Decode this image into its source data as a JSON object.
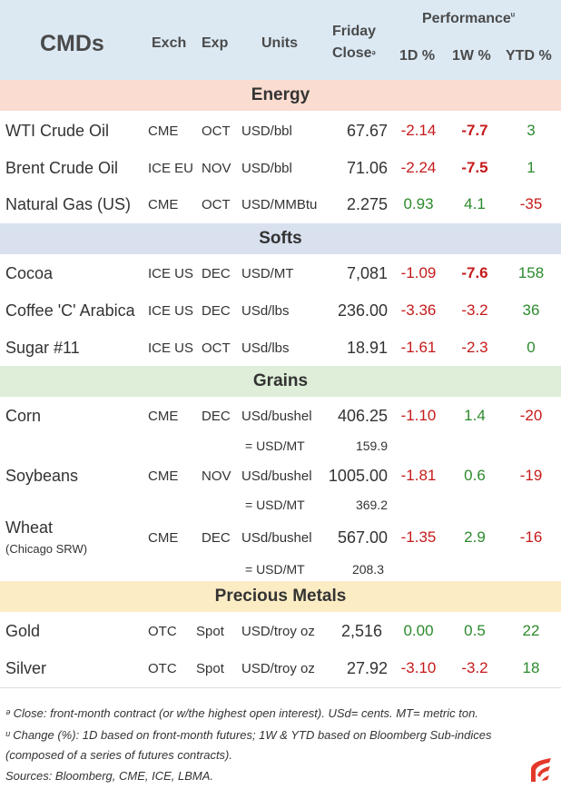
{
  "header": {
    "title": "CMDs",
    "exch": "Exch",
    "exp": "Exp",
    "units": "Units",
    "friday": "Friday",
    "close": "Close",
    "close_mark": "ᵊ",
    "performance": "Performance",
    "perf_mark": "ᵘ",
    "d1": "1D %",
    "w1": "1W %",
    "ytd": "YTD %"
  },
  "sections": {
    "energy": "Energy",
    "softs": "Softs",
    "grains": "Grains",
    "metals": "Precious Metals"
  },
  "colors": {
    "energy": "#fbdcd0",
    "softs": "#d9e1ef",
    "grains": "#deeed9",
    "metals": "#fcecc4",
    "negative": "#c61a1a",
    "positive": "#2c8a2c"
  },
  "rows": {
    "wti": {
      "name": "WTI Crude Oil",
      "exch": "CME",
      "exp": "OCT",
      "units": "USD/bbl",
      "close": "67.67",
      "d1": "-2.14",
      "w1": "-7.7",
      "ytd": "3"
    },
    "brent": {
      "name": "Brent Crude Oil",
      "exch": "ICE EU",
      "exp": "NOV",
      "units": "USD/bbl",
      "close": "71.06",
      "d1": "-2.24",
      "w1": "-7.5",
      "ytd": "1"
    },
    "natgas": {
      "name": "Natural Gas (US)",
      "exch": "CME",
      "exp": "OCT",
      "units": "USD/MMBtu",
      "close": "2.275",
      "d1": "0.93",
      "w1": "4.1",
      "ytd": "-35"
    },
    "cocoa": {
      "name": "Cocoa",
      "exch": "ICE US",
      "exp": "DEC",
      "units": "USD/MT",
      "close": "7,081",
      "d1": "-1.09",
      "w1": "-7.6",
      "ytd": "158"
    },
    "coffee": {
      "name": "Coffee 'C' Arabica",
      "exch": "ICE US",
      "exp": "DEC",
      "units": "USd/lbs",
      "close": "236.00",
      "d1": "-3.36",
      "w1": "-3.2",
      "ytd": "36"
    },
    "sugar": {
      "name": "Sugar #11",
      "exch": "ICE US",
      "exp": "OCT",
      "units": "USd/lbs",
      "close": "18.91",
      "d1": "-1.61",
      "w1": "-2.3",
      "ytd": "0"
    },
    "corn": {
      "name": "Corn",
      "exch": "CME",
      "exp": "DEC",
      "units": "USd/bushel",
      "close": "406.25",
      "d1": "-1.10",
      "w1": "1.4",
      "ytd": "-20",
      "alt_units": "= USD/MT",
      "alt_close": "159.9"
    },
    "soy": {
      "name": "Soybeans",
      "exch": "CME",
      "exp": "NOV",
      "units": "USd/bushel",
      "close": "1005.00",
      "d1": "-1.81",
      "w1": "0.6",
      "ytd": "-19",
      "alt_units": "= USD/MT",
      "alt_close": "369.2"
    },
    "wheat": {
      "name": "Wheat",
      "sub": "(Chicago SRW)",
      "exch": "CME",
      "exp": "DEC",
      "units": "USd/bushel",
      "close": "567.00",
      "d1": "-1.35",
      "w1": "2.9",
      "ytd": "-16",
      "alt_units": "= USD/MT",
      "alt_close": "208.3"
    },
    "gold": {
      "name": "Gold",
      "exch": "OTC",
      "exp": "Spot",
      "units": "USD/troy oz",
      "close": "2,516",
      "d1": "0.00",
      "w1": "0.5",
      "ytd": "22"
    },
    "silver": {
      "name": "Silver",
      "exch": "OTC",
      "exp": "Spot",
      "units": "USD/troy oz",
      "close": "27.92",
      "d1": "-3.10",
      "w1": "-3.2",
      "ytd": "18"
    }
  },
  "footnotes": {
    "close_note": "ᵊ Close: front-month contract (or w/the highest open interest). USd= cents. MT= metric ton.",
    "change_note_1": "ᵘ Change (%): 1D based on front-month futures; 1W & YTD based on Bloomberg Sub-indices",
    "change_note_2": "(composed of a series of futures contracts).",
    "sources": "Sources: Bloomberg, CME, ICE, LBMA."
  },
  "logo": "brand-logo"
}
